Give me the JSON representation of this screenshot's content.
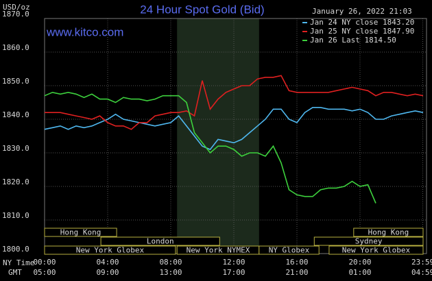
{
  "chart_data": {
    "type": "line",
    "title": "24 Hour Spot Gold (Bid)",
    "timestamp": "January 26, 2022 21:03",
    "unit": "USD/oz",
    "watermark": "www.kitco.com",
    "x_axis_label": "NY Time",
    "x2_axis_label": "GMT",
    "x": [
      0,
      0.5,
      1,
      1.5,
      2,
      2.5,
      3,
      3.5,
      4,
      4.5,
      5,
      5.5,
      6,
      6.5,
      7,
      7.5,
      8,
      8.5,
      9,
      9.5,
      10,
      10.5,
      11,
      11.5,
      12,
      12.5,
      13,
      13.5,
      14,
      14.5,
      15,
      15.5,
      16,
      16.5,
      17,
      17.5,
      18,
      18.5,
      19,
      19.5,
      20,
      20.5,
      21,
      21.5,
      22,
      22.5,
      23,
      23.5,
      24
    ],
    "series": [
      {
        "name": "Jan 24 NY close 1843.20",
        "color": "#4fb8f0",
        "values": [
          1837,
          1837.5,
          1838,
          1837,
          1838,
          1837.5,
          1838,
          1839,
          1840,
          1841.5,
          1840,
          1839.5,
          1839,
          1838.5,
          1838,
          1838.5,
          1839,
          1841,
          1838,
          1835,
          1832,
          1831,
          1834,
          1833.5,
          1833,
          1834,
          1836,
          1838,
          1840,
          1843,
          1843,
          1840,
          1839,
          1842,
          1843.5,
          1843.5,
          1843,
          1843,
          1843,
          1842.5,
          1843,
          1842,
          1840,
          1840,
          1841,
          1841.5,
          1842,
          1842.5,
          1842
        ]
      },
      {
        "name": "Jan 25 NY close 1847.90",
        "color": "#e02020",
        "values": [
          1842,
          1842,
          1842,
          1841.5,
          1841,
          1840.5,
          1840,
          1841,
          1839,
          1838,
          1838,
          1837,
          1839,
          1839,
          1841,
          1841.5,
          1842,
          1842,
          1842.5,
          1841,
          1851.5,
          1843,
          1846,
          1848,
          1849,
          1850,
          1850,
          1852,
          1852.5,
          1852.5,
          1853,
          1848.5,
          1848,
          1848,
          1848,
          1848,
          1848,
          1848.5,
          1849,
          1849.5,
          1849,
          1848.5,
          1847,
          1848,
          1848,
          1847.5,
          1847,
          1847.5,
          1847
        ]
      },
      {
        "name": "Jan 26 Last 1814.50",
        "color": "#3dd13d",
        "values": [
          1847,
          1848,
          1847.5,
          1848,
          1847.5,
          1846.5,
          1847.5,
          1846,
          1846,
          1845,
          1846.5,
          1846,
          1846,
          1845.5,
          1846,
          1847,
          1847,
          1847,
          1845,
          1836,
          1833,
          1830,
          1832,
          1832,
          1831,
          1829,
          1830,
          1830,
          1829,
          1832,
          1827,
          1819,
          1817.5,
          1817,
          1817,
          1819,
          1819.5,
          1819.5,
          1820,
          1821.5,
          1820,
          1820.5,
          1815,
          null,
          null,
          null,
          null,
          null,
          null
        ]
      }
    ],
    "ylim": [
      1800,
      1870
    ],
    "yticks": [
      {
        "value": 1800,
        "label": "1800.0"
      },
      {
        "value": 1810,
        "label": "1810.0"
      },
      {
        "value": 1820,
        "label": "1820.0"
      },
      {
        "value": 1830,
        "label": "1830.0"
      },
      {
        "value": 1840,
        "label": "1840.0"
      },
      {
        "value": 1850,
        "label": "1850.0"
      },
      {
        "value": 1860,
        "label": "1860.0"
      },
      {
        "value": 1870,
        "label": "1870.0"
      }
    ],
    "xlim": [
      0,
      24
    ],
    "xticks": [
      {
        "value": 0,
        "label": "00:00"
      },
      {
        "value": 4,
        "label": "04:00"
      },
      {
        "value": 8,
        "label": "08:00"
      },
      {
        "value": 12,
        "label": "12:00"
      },
      {
        "value": 16,
        "label": "16:00"
      },
      {
        "value": 20,
        "label": "20:00"
      },
      {
        "value": 23.98,
        "label": "23:59"
      }
    ],
    "x2ticks": [
      "05:00",
      "09:00",
      "13:00",
      "17:00",
      "21:00",
      "01:00",
      "04:59"
    ],
    "shaded_range": [
      8.4,
      13.6
    ],
    "session_rows": [
      [
        {
          "name": "Hong Kong",
          "start": 0,
          "end": 4.57
        },
        {
          "name": "Hong Kong",
          "start": 19.6,
          "end": 24
        }
      ],
      [
        {
          "name": "London",
          "start": 3.57,
          "end": 11.1
        },
        {
          "name": "Sydney",
          "start": 17.1,
          "end": 24
        }
      ],
      [
        {
          "name": "New York Globex",
          "start": 0,
          "end": 8.3
        },
        {
          "name": "New York NYMEX",
          "start": 8.4,
          "end": 13.6
        },
        {
          "name": "NY Globex",
          "start": 13.6,
          "end": 17.4
        },
        {
          "name": "New York Globex",
          "start": 18.04,
          "end": 24
        }
      ]
    ],
    "grid": true
  }
}
